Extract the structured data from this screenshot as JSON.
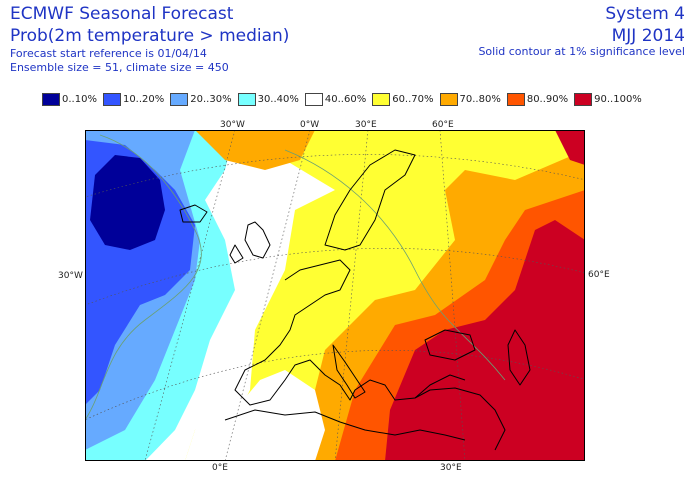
{
  "header": {
    "title": "ECMWF Seasonal Forecast",
    "subtitle": "Prob(2m temperature > median)",
    "start_ref": "Forecast start reference is 01/04/14",
    "ensemble": "Ensemble size = 51, climate size = 450",
    "system": "System 4",
    "period": "MJJ 2014",
    "significance_note": "Solid contour at 1% significance level"
  },
  "legend": [
    {
      "label": "0..10%",
      "color": "#000099"
    },
    {
      "label": "10..20%",
      "color": "#3355ff"
    },
    {
      "label": "20..30%",
      "color": "#66aaff"
    },
    {
      "label": "30..40%",
      "color": "#77ffff"
    },
    {
      "label": "40..60%",
      "color": "#ffffff"
    },
    {
      "label": "60..70%",
      "color": "#ffff33"
    },
    {
      "label": "70..80%",
      "color": "#ffaa00"
    },
    {
      "label": "80..90%",
      "color": "#ff5500"
    },
    {
      "label": "90..100%",
      "color": "#cc0022"
    }
  ],
  "map": {
    "projection": "polar stereographic",
    "region": "Europe / North Atlantic",
    "top_labels": [
      "30°W",
      "0°W",
      "30°E",
      "60°E"
    ],
    "bottom_labels": [
      "0°E",
      "30°E"
    ],
    "left_labels": [
      "30°W"
    ],
    "right_labels": [
      "60°E"
    ]
  }
}
